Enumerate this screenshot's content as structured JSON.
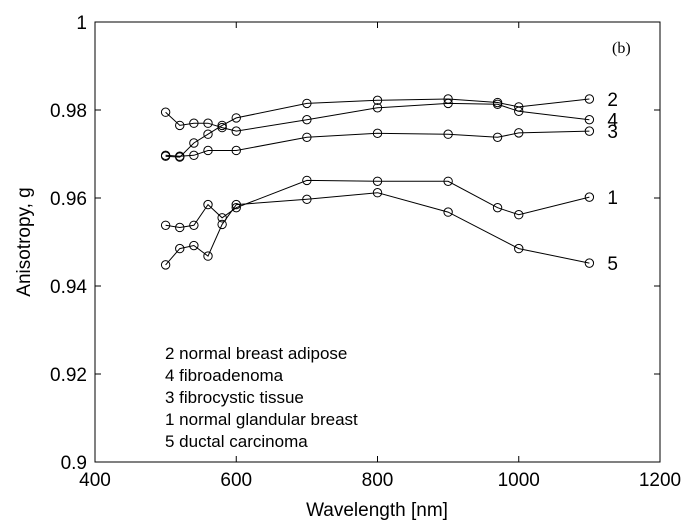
{
  "chart_data": {
    "type": "line",
    "panel_label": "(b)",
    "xlabel": "Wavelength [nm]",
    "ylabel": "Anisotropy, g",
    "xlim": [
      400,
      1200
    ],
    "ylim": [
      0.9,
      1.0
    ],
    "xticks": [
      400,
      600,
      800,
      1000,
      1200
    ],
    "xtick_labels": [
      "400",
      "600",
      "800",
      "1000",
      "1200"
    ],
    "yticks": [
      0.9,
      0.92,
      0.94,
      0.96,
      0.98,
      1.0
    ],
    "ytick_labels": [
      "0.9",
      "0.92",
      "0.94",
      "0.96",
      "0.98",
      "1"
    ],
    "grid": false,
    "marker": "circle",
    "series": [
      {
        "name": "2",
        "x": [
          500,
          520,
          540,
          560,
          580,
          600,
          700,
          800,
          900,
          970,
          1000,
          1100
        ],
        "y": [
          0.9695,
          0.9693,
          0.9725,
          0.9745,
          0.9765,
          0.9782,
          0.9815,
          0.9822,
          0.9825,
          0.9817,
          0.9807,
          0.9825
        ]
      },
      {
        "name": "4",
        "x": [
          500,
          520,
          540,
          560,
          580,
          600,
          700,
          800,
          900,
          970,
          1000,
          1100
        ],
        "y": [
          0.9795,
          0.9765,
          0.977,
          0.977,
          0.976,
          0.9752,
          0.9778,
          0.9805,
          0.9815,
          0.9813,
          0.9797,
          0.9778
        ]
      },
      {
        "name": "3",
        "x": [
          500,
          520,
          540,
          560,
          600,
          700,
          800,
          900,
          970,
          1000,
          1100
        ],
        "y": [
          0.9697,
          0.9695,
          0.9697,
          0.9708,
          0.9708,
          0.9738,
          0.9747,
          0.9745,
          0.9738,
          0.9748,
          0.9752
        ]
      },
      {
        "name": "1",
        "x": [
          500,
          520,
          540,
          560,
          580,
          600,
          700,
          800,
          900,
          970,
          1000,
          1100
        ],
        "y": [
          0.9538,
          0.9533,
          0.9538,
          0.9585,
          0.9555,
          0.9578,
          0.964,
          0.9638,
          0.9638,
          0.9578,
          0.9562,
          0.9602
        ]
      },
      {
        "name": "5",
        "x": [
          500,
          520,
          540,
          560,
          580,
          600,
          700,
          800,
          900,
          1000,
          1100
        ],
        "y": [
          0.9448,
          0.9485,
          0.9492,
          0.9468,
          0.954,
          0.9585,
          0.9597,
          0.9612,
          0.9568,
          0.9485,
          0.9452
        ]
      }
    ],
    "legend": [
      "2 normal breast adipose",
      "4 fibroadenoma",
      "3 fibrocystic tissue",
      "1 normal glandular breast",
      "5 ductal carcinoma"
    ]
  }
}
